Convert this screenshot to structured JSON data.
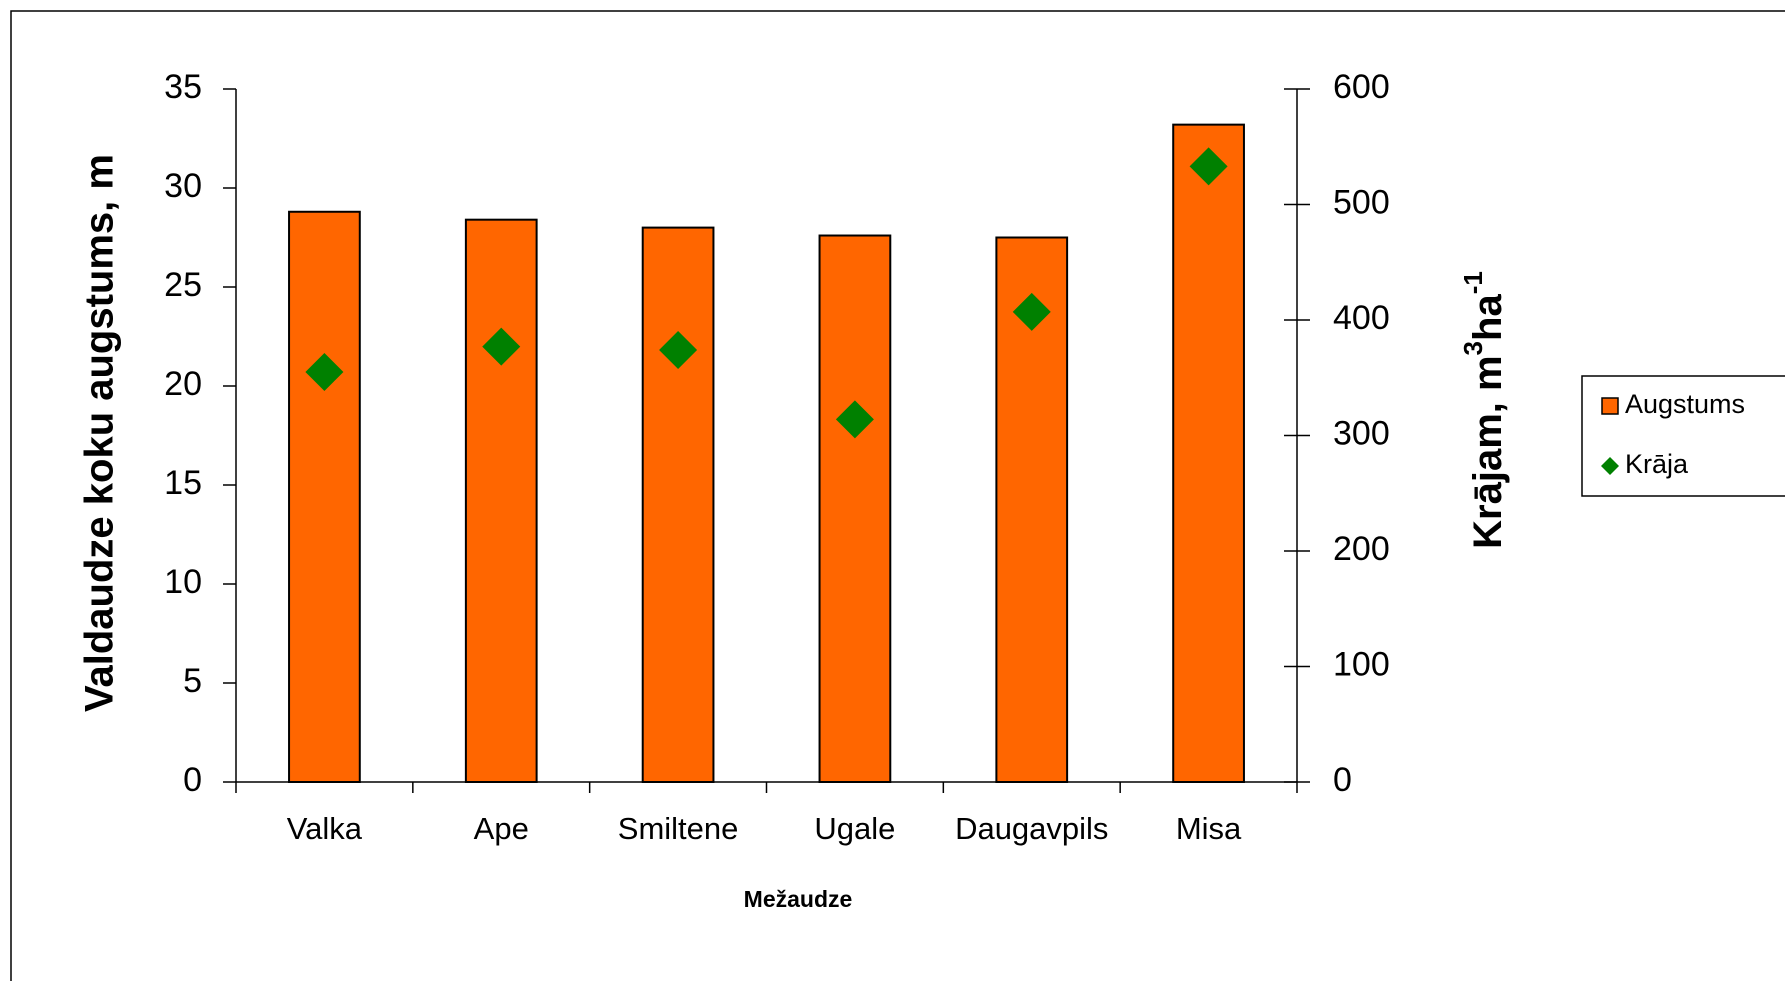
{
  "chart_data": {
    "type": "bar",
    "categories": [
      "Valka",
      "Ape",
      "Smiltene",
      "Ugale",
      "Daugavpils",
      "Misa"
    ],
    "series": [
      {
        "name": "Augstums",
        "type": "bar",
        "color": "#ff6600",
        "values": [
          28.8,
          28.4,
          28.0,
          27.6,
          27.5,
          33.2
        ]
      },
      {
        "name": "Krāja",
        "type": "scatter",
        "axis": "y2",
        "color": "#008000",
        "values": [
          355,
          377,
          374,
          314,
          407,
          533
        ]
      }
    ],
    "xlabel": "Mežaudze",
    "ylabel": "Valdaudze koku augstums, m",
    "y2label": [
      "Krājam, m",
      "3",
      "ha",
      "-1"
    ],
    "ylim": [
      0,
      35
    ],
    "yticks": [
      0,
      5,
      10,
      15,
      20,
      25,
      30,
      35
    ],
    "y2lim": [
      0,
      600
    ],
    "y2ticks": [
      0,
      100,
      200,
      300,
      400,
      500,
      600
    ],
    "legend": "right"
  }
}
